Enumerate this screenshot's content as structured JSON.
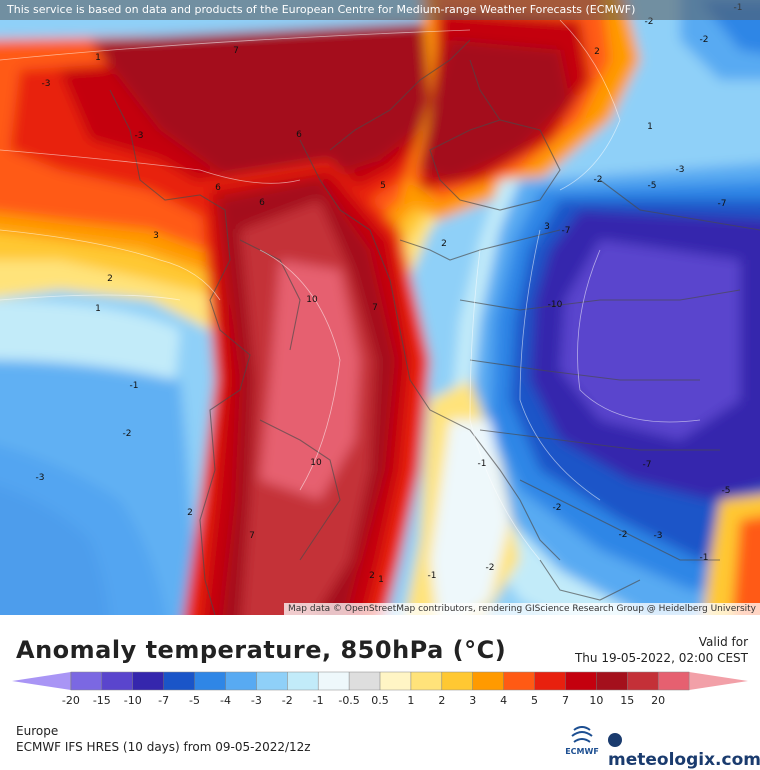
{
  "map": {
    "top_credit": "This service is based on data and products of the European Centre for Medium-range Weather Forecasts (ECMWF)",
    "bottom_credit": "Map data © OpenStreetMap contributors, rendering GIScience Research Group @ Heidelberg University",
    "contour_labels": [
      {
        "text": "-2"
      },
      {
        "text": "-1"
      },
      {
        "text": "1"
      },
      {
        "text": "-3"
      },
      {
        "text": "-2"
      },
      {
        "text": "2"
      },
      {
        "text": "-3"
      },
      {
        "text": "3"
      },
      {
        "text": "7"
      },
      {
        "text": "6"
      },
      {
        "text": "6"
      },
      {
        "text": "1"
      },
      {
        "text": "6"
      },
      {
        "text": "5"
      },
      {
        "text": "-2"
      },
      {
        "text": "-5"
      },
      {
        "text": "-3"
      },
      {
        "text": "-7"
      },
      {
        "text": "3"
      },
      {
        "text": "2"
      },
      {
        "text": "2"
      },
      {
        "text": "1"
      },
      {
        "text": "-7"
      },
      {
        "text": "-10"
      },
      {
        "text": "10"
      },
      {
        "text": "7"
      },
      {
        "text": "-1"
      },
      {
        "text": "-2"
      },
      {
        "text": "10"
      },
      {
        "text": "-1"
      },
      {
        "text": "-7"
      },
      {
        "text": "-5"
      },
      {
        "text": "2"
      },
      {
        "text": "7"
      },
      {
        "text": "-2"
      },
      {
        "text": "-2"
      },
      {
        "text": "-3"
      },
      {
        "text": "-1"
      },
      {
        "text": "2"
      },
      {
        "text": "1"
      },
      {
        "text": "-1"
      },
      {
        "text": "-2"
      },
      {
        "text": "-3"
      }
    ]
  },
  "header": {
    "title": "Anomaly temperature, 850hPa (°C)",
    "valid_label": "Valid for",
    "valid_time": "Thu 19-05-2022, 02:00 CEST"
  },
  "legend": {
    "colors": [
      "#a995f5",
      "#7b68e2",
      "#5a45cd",
      "#3526ad",
      "#1a55c8",
      "#2f86e6",
      "#58aaf2",
      "#8fd0f8",
      "#c2ebf9",
      "#eef8fb",
      "#dedede",
      "#fff5c5",
      "#ffe37a",
      "#ffc832",
      "#ff9a00",
      "#ff5a14",
      "#e8200e",
      "#c4000e",
      "#a4101c",
      "#c43038",
      "#e66070",
      "#f2a0a8"
    ],
    "tick_labels": [
      "-20",
      "-15",
      "-10",
      "-7",
      "-5",
      "-4",
      "-3",
      "-2",
      "-1",
      "-0.5",
      "0.5",
      "1",
      "2",
      "3",
      "4",
      "5",
      "7",
      "10",
      "15",
      "20"
    ]
  },
  "footer": {
    "region": "Europe",
    "model_info": "ECMWF IFS HRES (10 days) from 09-05-2022/12z",
    "ecmwf_logo": "ECMWF",
    "brand": "meteologix.com"
  }
}
